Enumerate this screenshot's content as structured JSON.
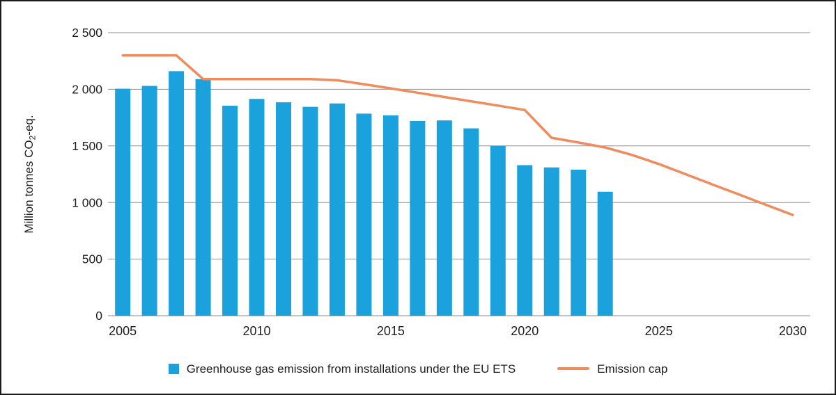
{
  "colors": {
    "grid": "#8f8f8f",
    "text": "#1f1f1f",
    "border": "#1c1c1c",
    "background": "#ffffff"
  },
  "chart_data": {
    "type": "bar",
    "title": "",
    "xlabel": "",
    "ylabel": "Million tonnes CO₂-eq.",
    "ylabel_parts": {
      "prefix": "Million tonnes CO",
      "subscript": "2",
      "suffix": "-eq."
    },
    "ylim": [
      0,
      2500
    ],
    "ytick_interval": 500,
    "grid": "horizontal",
    "legend_position": "bottom",
    "yticks": [
      {
        "value": 0,
        "label": "0"
      },
      {
        "value": 500,
        "label": "500"
      },
      {
        "value": 1000,
        "label": "1 000"
      },
      {
        "value": 1500,
        "label": "1 500"
      },
      {
        "value": 2000,
        "label": "2 000"
      },
      {
        "value": 2500,
        "label": "2 500"
      }
    ],
    "xticks": [
      {
        "value": 2005,
        "label": "2005"
      },
      {
        "value": 2010,
        "label": "2010"
      },
      {
        "value": 2015,
        "label": "2015"
      },
      {
        "value": 2020,
        "label": "2020"
      },
      {
        "value": 2025,
        "label": "2025"
      },
      {
        "value": 2030,
        "label": "2030"
      }
    ],
    "series": [
      {
        "name": "Greenhouse gas emission from installations under the EU ETS",
        "type": "bar",
        "color": "#1ba1dc",
        "x": [
          2005,
          2006,
          2007,
          2008,
          2009,
          2010,
          2011,
          2012,
          2013,
          2014,
          2015,
          2016,
          2017,
          2018,
          2019,
          2020,
          2021,
          2022,
          2023
        ],
        "values": [
          2005,
          2030,
          2160,
          2090,
          1855,
          1915,
          1885,
          1845,
          1875,
          1785,
          1770,
          1720,
          1725,
          1655,
          1500,
          1330,
          1310,
          1290,
          1095
        ]
      },
      {
        "name": "Emission cap",
        "type": "line",
        "color": "#ef8b5c",
        "x": [
          2005,
          2006,
          2007,
          2008,
          2009,
          2010,
          2011,
          2012,
          2013,
          2014,
          2015,
          2016,
          2017,
          2018,
          2019,
          2020,
          2021,
          2022,
          2023,
          2024,
          2025,
          2026,
          2027,
          2028,
          2029,
          2030
        ],
        "values": [
          2300,
          2300,
          2300,
          2090,
          2090,
          2090,
          2090,
          2090,
          2080,
          2045,
          2008,
          1970,
          1932,
          1894,
          1856,
          1817,
          1572,
          1530,
          1486,
          1420,
          1340,
          1250,
          1160,
          1070,
          980,
          890
        ]
      }
    ]
  }
}
